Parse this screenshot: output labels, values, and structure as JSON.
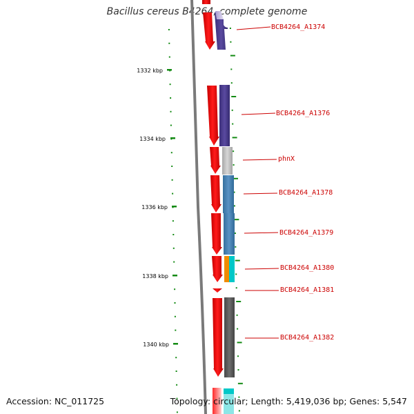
{
  "title": "Bacillus cereus B4264, complete genome",
  "accession_text": "Accession: NC_011725",
  "stats_text": "Topology: circular; Length: 5,419,036 bp; Genes: 5,547",
  "scale_labels": [
    "1332 kbp",
    "1334 kbp",
    "1336 kbp",
    "1338 kbp",
    "1340 kbp"
  ],
  "genes": [
    {
      "name": "BCB4264_A1374",
      "color": "#4b3e8e"
    },
    {
      "name": "BCB4264_A1376",
      "color": "#4b3e8e"
    },
    {
      "name": "phnX",
      "color": "#bdbdbd"
    },
    {
      "name": "BCB4264_A1378",
      "color": "#4682b4"
    },
    {
      "name": "BCB4264_A1379",
      "color": "#4682b4"
    },
    {
      "name": "BCB4264_A1380",
      "color": "#f08c00"
    },
    {
      "name": "BCB4264_A1381",
      "color": "#ff0000"
    },
    {
      "name": "BCB4264_A1382",
      "color": "#5a5a5a"
    }
  ],
  "colors": {
    "strand_arrow": "#ff0000",
    "backbone": "#7a7a7a",
    "gc_dashes": "#138a13",
    "label_text": "#cc0000",
    "teal_feature": "#00c8c8"
  }
}
